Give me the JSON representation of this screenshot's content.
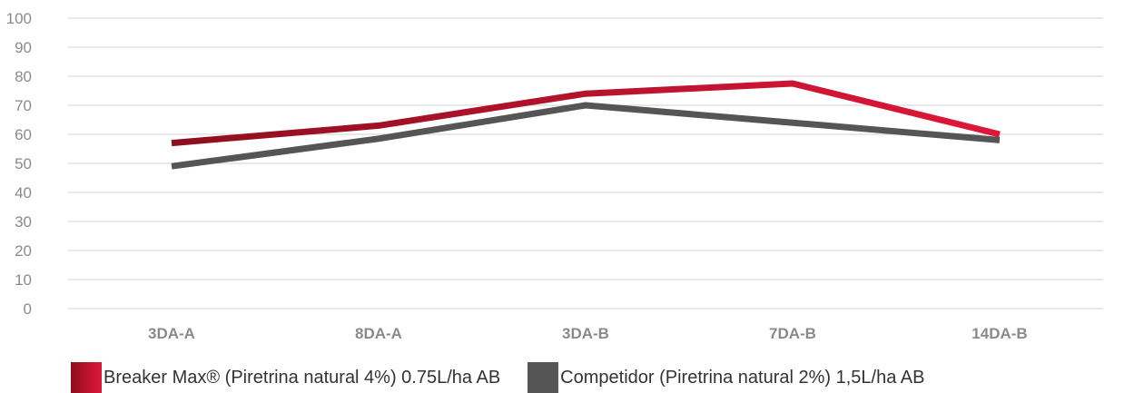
{
  "chart_data": {
    "type": "line",
    "categories": [
      "3DA-A",
      "8DA-A",
      "3DA-B",
      "7DA-B",
      "14DA-B"
    ],
    "series": [
      {
        "name": "Breaker Max® (Piretrina natural 4%) 0.75L/ha AB",
        "values": [
          57,
          63,
          74,
          77.5,
          60
        ],
        "color_start": "#8c0f1f",
        "color_end": "#e0173a"
      },
      {
        "name": "Competidor (Piretrina natural 2%) 1,5L/ha AB",
        "values": [
          49,
          58.5,
          70,
          64,
          58
        ],
        "color": "#555555"
      }
    ],
    "yticks": [
      "100",
      "90",
      "80",
      "70",
      "60",
      "50",
      "40",
      "30",
      "20",
      "10",
      "0"
    ],
    "ylim": [
      0,
      100
    ],
    "grid": true,
    "legend_position": "bottom"
  }
}
